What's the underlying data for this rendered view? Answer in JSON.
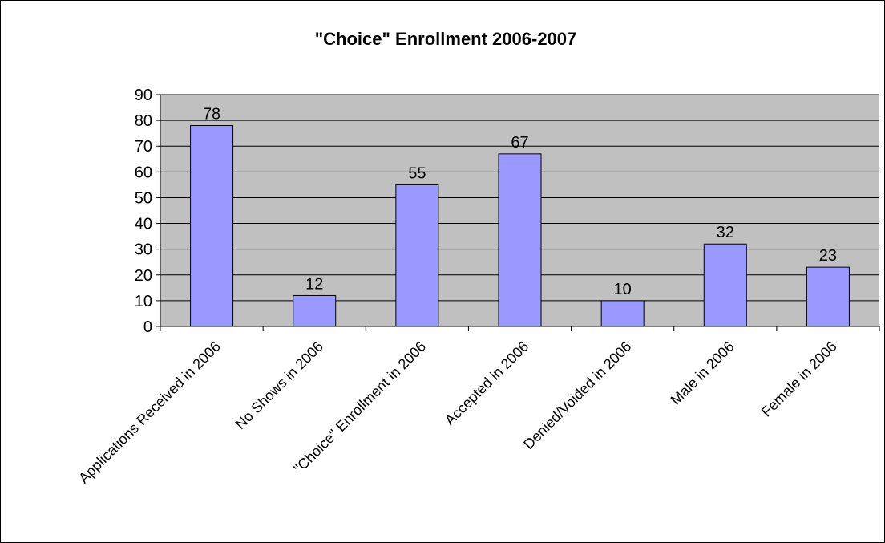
{
  "chart_data": {
    "type": "bar",
    "title": "\"Choice\" Enrollment 2006-2007",
    "xlabel": "",
    "ylabel": "",
    "categories": [
      "Applications Received in 2006",
      "No Shows in 2006",
      "\"Choice\" Enrollment in 2006",
      "Accepted in 2006",
      "Denied/Voided in 2006",
      "Male in 2006",
      "Female in 2006"
    ],
    "values": [
      78,
      12,
      55,
      67,
      10,
      32,
      23
    ],
    "ylim": [
      0,
      90
    ],
    "yticks": [
      0,
      10,
      20,
      30,
      40,
      50,
      60,
      70,
      80,
      90
    ],
    "grid": true,
    "legend": "none",
    "colors": {
      "plot_background": "#c0c0c0",
      "bar_fill": "#9999ff",
      "bar_stroke": "#000000",
      "gridline": "#000000"
    }
  }
}
